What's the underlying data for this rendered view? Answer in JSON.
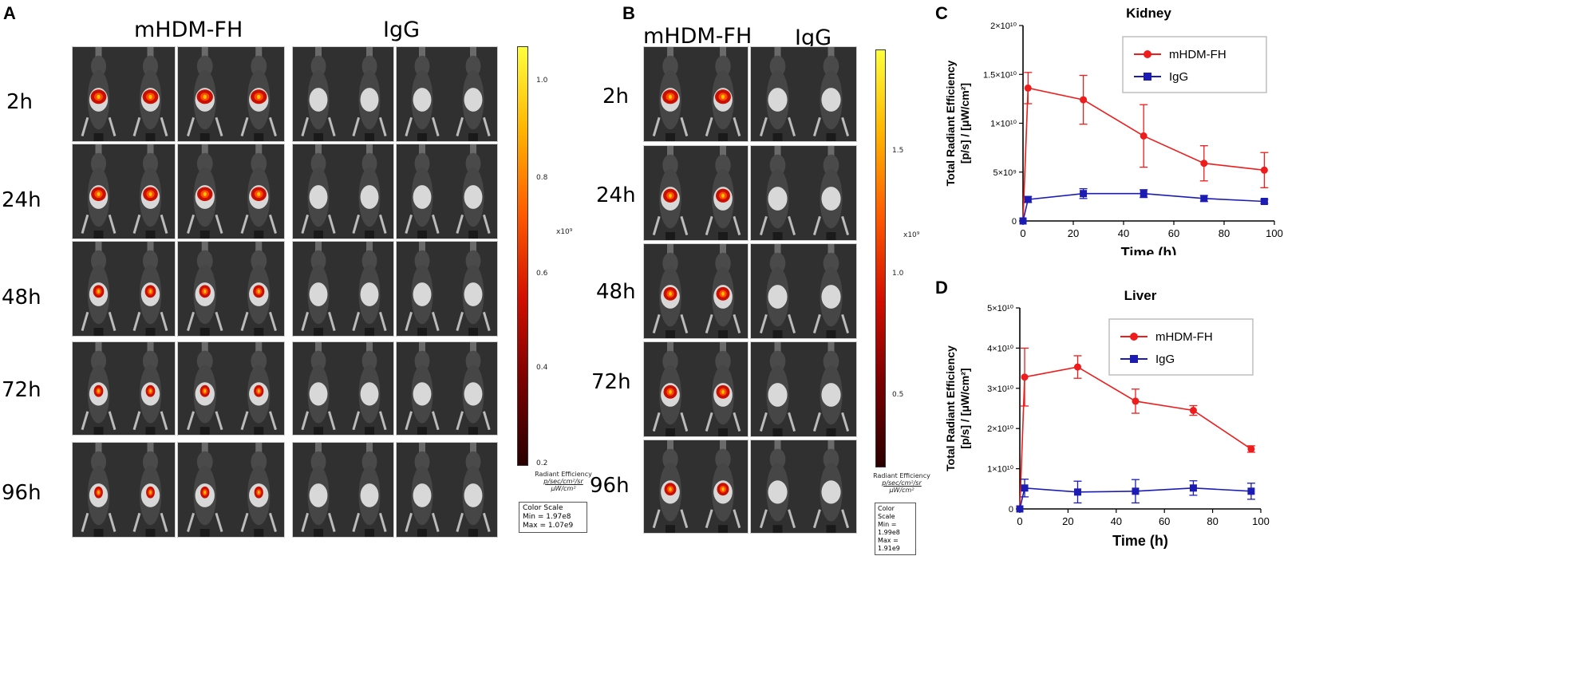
{
  "panels": {
    "A": {
      "letter": "A",
      "group_labels": [
        "mHDM-FH",
        "IgG"
      ],
      "time_labels": [
        "2h",
        "24h",
        "48h",
        "72h",
        "96h"
      ],
      "colorbar": {
        "ticks": [
          "1.0",
          "0.8",
          "0.6",
          "0.4",
          "0.2"
        ],
        "exponent": "x10⁹",
        "unit_title": "Radiant Efficiency",
        "unit_num": "p/sec/cm²/sr",
        "unit_den": "μW/cm²",
        "scale_title": "Color Scale",
        "scale_min": "Min = 1.97e8",
        "scale_max": "Max = 1.07e9"
      }
    },
    "B": {
      "letter": "B",
      "group_labels": [
        "mHDM-FH",
        "IgG"
      ],
      "time_labels": [
        "2h",
        "24h",
        "48h",
        "72h",
        "96h"
      ],
      "colorbar": {
        "ticks": [
          "1.5",
          "1.0",
          "0.5"
        ],
        "exponent": "x10⁹",
        "unit_title": "Radiant Efficiency",
        "unit_num": "p/sec/cm²/sr",
        "unit_den": "μW/cm²",
        "scale_title": "Color Scale",
        "scale_min": "Min = 1.99e8",
        "scale_max": "Max = 1.91e9"
      }
    },
    "C": {
      "letter": "C"
    },
    "D": {
      "letter": "D"
    }
  },
  "chart_data": [
    {
      "type": "line",
      "panel": "C",
      "title": "Kidney",
      "xlabel": "Time (h)",
      "ylabel_line1": "Total Radiant Efficiency",
      "ylabel_line2": "[p/s] / [μW/cm²]",
      "x": [
        0,
        2,
        24,
        48,
        72,
        96
      ],
      "xlim": [
        0,
        100
      ],
      "xticks": [
        "0",
        "20",
        "40",
        "60",
        "80",
        "100"
      ],
      "ylim": [
        0,
        20000000000
      ],
      "yticks": [
        {
          "value": 0,
          "label": "0"
        },
        {
          "value": 5000000000,
          "label": "5×10⁹"
        },
        {
          "value": 10000000000,
          "label": "1×10¹⁰"
        },
        {
          "value": 15000000000,
          "label": "1.5×10¹⁰"
        },
        {
          "value": 20000000000,
          "label": "2×10¹⁰"
        }
      ],
      "legend_position": "top-right",
      "series": [
        {
          "name": "mHDM-FH",
          "color": "#ee1c1c",
          "marker": "circle",
          "values": [
            0,
            13600000000,
            12400000000,
            8700000000,
            5900000000,
            5200000000
          ],
          "errors": [
            0,
            1600000000,
            2500000000,
            3200000000,
            1800000000,
            1800000000
          ]
        },
        {
          "name": "IgG",
          "color": "#1c1cb4",
          "marker": "square",
          "values": [
            0,
            2200000000,
            2800000000,
            2800000000,
            2300000000,
            2000000000
          ],
          "errors": [
            0,
            300000000,
            500000000,
            400000000,
            300000000,
            200000000
          ]
        }
      ]
    },
    {
      "type": "line",
      "panel": "D",
      "title": "Liver",
      "xlabel": "Time (h)",
      "ylabel_line1": "Total Radiant Efficiency",
      "ylabel_line2": "[p/s] / [μW/cm²]",
      "x": [
        0,
        2,
        24,
        48,
        72,
        96
      ],
      "xlim": [
        0,
        100
      ],
      "xticks": [
        "0",
        "20",
        "40",
        "60",
        "80",
        "100"
      ],
      "ylim": [
        0,
        50000000000
      ],
      "yticks": [
        {
          "value": 0,
          "label": "0"
        },
        {
          "value": 10000000000,
          "label": "1×10¹⁰"
        },
        {
          "value": 20000000000,
          "label": "2×10¹⁰"
        },
        {
          "value": 30000000000,
          "label": "3×10¹⁰"
        },
        {
          "value": 40000000000,
          "label": "4×10¹⁰"
        },
        {
          "value": 50000000000,
          "label": "5×10¹⁰"
        }
      ],
      "legend_position": "top-right",
      "series": [
        {
          "name": "mHDM-FH",
          "color": "#ee1c1c",
          "marker": "circle",
          "values": [
            0,
            32800000000,
            35300000000,
            26800000000,
            24500000000,
            14900000000
          ],
          "errors": [
            0,
            7200000000,
            2800000000,
            3000000000,
            1200000000,
            800000000
          ]
        },
        {
          "name": "IgG",
          "color": "#1c1cb4",
          "marker": "square",
          "values": [
            0,
            5200000000,
            4200000000,
            4400000000,
            5200000000,
            4400000000
          ],
          "errors": [
            0,
            2200000000,
            2700000000,
            2900000000,
            1800000000,
            2000000000
          ]
        }
      ]
    }
  ]
}
